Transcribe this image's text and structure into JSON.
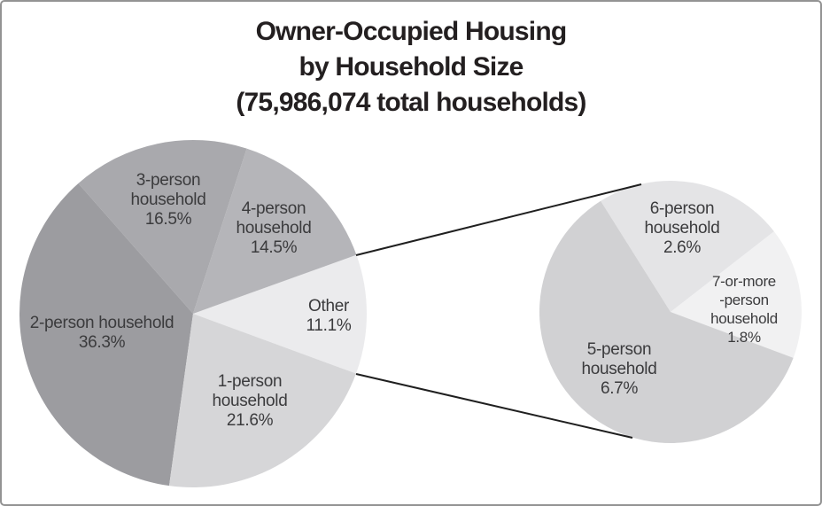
{
  "header": {
    "title": "Owner-Occupied Housing\nby Household Size\n(75,986,074 total households)"
  },
  "chart_data": [
    {
      "type": "pie",
      "id": "main",
      "title": "Owner-Occupied Housing by Household Size",
      "total_households": "75,986,074",
      "slices": [
        {
          "label": "Other",
          "value_pct": 11.1,
          "display": "Other\n11.1%",
          "color": "#ebebed"
        },
        {
          "label": "4-person household",
          "value_pct": 14.5,
          "display": "4-person\nhousehold\n14.5%",
          "color": "#b5b5b9"
        },
        {
          "label": "3-person household",
          "value_pct": 16.5,
          "display": "3-person\nhousehold\n16.5%",
          "color": "#a9a9ad"
        },
        {
          "label": "2-person household",
          "value_pct": 36.3,
          "display": "2-person household\n36.3%",
          "color": "#9c9ca0"
        },
        {
          "label": "1-person household",
          "value_pct": 21.6,
          "display": "1-person\nhousehold\n21.6%",
          "color": "#d6d6d8"
        }
      ]
    },
    {
      "type": "pie",
      "id": "detail",
      "slices": [
        {
          "label": "7-or-more-person household",
          "value_pct": 1.8,
          "display": "7-or-more\n-person household\n1.8%",
          "color": "#f1f1f2"
        },
        {
          "label": "6-person household",
          "value_pct": 2.6,
          "display": "6-person\nhousehold\n2.6%",
          "color": "#e4e4e6"
        },
        {
          "label": "5-person household",
          "value_pct": 6.7,
          "display": "5-person\nhousehold\n6.7%",
          "color": "#d1d1d3"
        }
      ]
    }
  ]
}
